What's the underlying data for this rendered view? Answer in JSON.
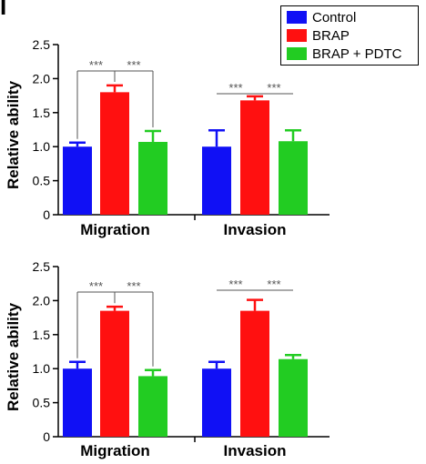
{
  "panel_letter": "I",
  "legend": [
    {
      "label": "Control",
      "color": "#1010f5"
    },
    {
      "label": "BRAP",
      "color": "#ff1010"
    },
    {
      "label": "BRAP + PDTC",
      "color": "#22cc22"
    }
  ],
  "significance_label": "***",
  "chart_data": [
    {
      "type": "bar",
      "ylabel": "Relative ability",
      "ylim": [
        0,
        2.5
      ],
      "yticks": [
        "0",
        "0.5",
        "1.0",
        "1.5",
        "2.0",
        "2.5"
      ],
      "categories": [
        "Migration",
        "Invasion"
      ],
      "series": [
        {
          "name": "Control",
          "values": [
            1.0,
            1.0
          ],
          "errors": [
            0.06,
            0.24
          ]
        },
        {
          "name": "BRAP",
          "values": [
            1.8,
            1.68
          ],
          "errors": [
            0.1,
            0.06
          ]
        },
        {
          "name": "BRAP + PDTC",
          "values": [
            1.07,
            1.08
          ],
          "errors": [
            0.16,
            0.16
          ]
        }
      ]
    },
    {
      "type": "bar",
      "ylabel": "Relative ability",
      "ylim": [
        0,
        2.5
      ],
      "yticks": [
        "0",
        "0.5",
        "1.0",
        "1.5",
        "2.0",
        "2.5"
      ],
      "categories": [
        "Migration",
        "Invasion"
      ],
      "series": [
        {
          "name": "Control",
          "values": [
            1.0,
            1.0
          ],
          "errors": [
            0.1,
            0.1
          ]
        },
        {
          "name": "BRAP",
          "values": [
            1.85,
            1.85
          ],
          "errors": [
            0.06,
            0.16
          ]
        },
        {
          "name": "BRAP + PDTC",
          "values": [
            0.89,
            1.14
          ],
          "errors": [
            0.09,
            0.06
          ]
        }
      ]
    }
  ]
}
